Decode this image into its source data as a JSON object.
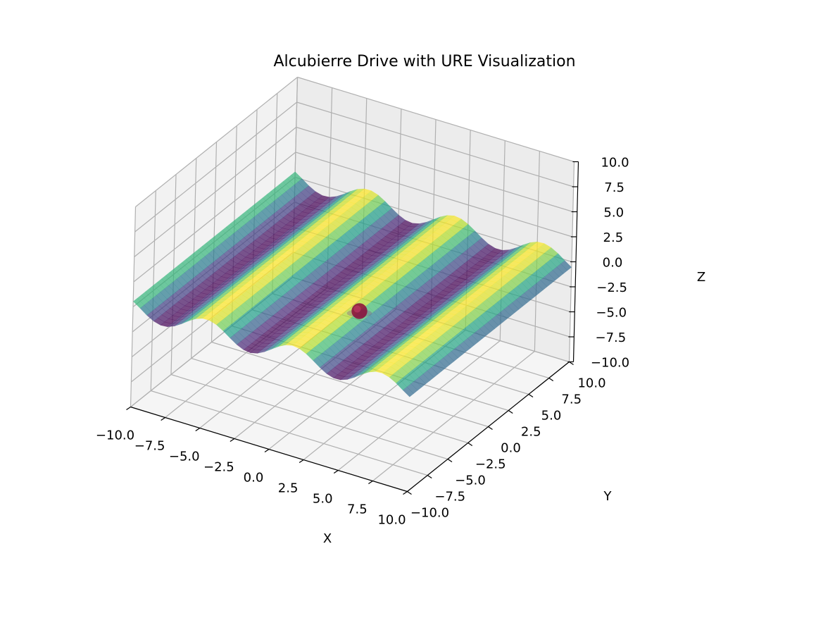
{
  "chart_data": {
    "type": "surface3d",
    "title": "Alcubierre Drive with URE Visualization",
    "xlabel": "X",
    "ylabel": "Y",
    "zlabel": "Z",
    "xlim": [
      -10,
      10
    ],
    "ylim": [
      -10,
      10
    ],
    "zlim": [
      -10,
      10
    ],
    "x_ticks": [
      "−10.0",
      "−7.5",
      "−5.0",
      "−2.5",
      "0.0",
      "2.5",
      "5.0",
      "7.5",
      "10.0"
    ],
    "y_ticks": [
      "−10.0",
      "−7.5",
      "−5.0",
      "−2.5",
      "0.0",
      "2.5",
      "5.0",
      "7.5",
      "10.0"
    ],
    "z_ticks": [
      "−10.0",
      "−7.5",
      "−5.0",
      "−2.5",
      "0.0",
      "2.5",
      "5.0",
      "7.5",
      "10.0"
    ],
    "grid": true,
    "colormap": "viridis",
    "surface": {
      "function": "z = sin(x) * amplitude (ripples along X, constant in Y)",
      "amplitude": 1,
      "x_range": [
        -10,
        10
      ],
      "y_range": [
        -10,
        10
      ],
      "resolution": 41,
      "alpha": 0.7
    },
    "bubble": {
      "center": [
        0,
        0,
        0
      ],
      "radius": 0.8,
      "color": "#8b0a3a"
    }
  }
}
